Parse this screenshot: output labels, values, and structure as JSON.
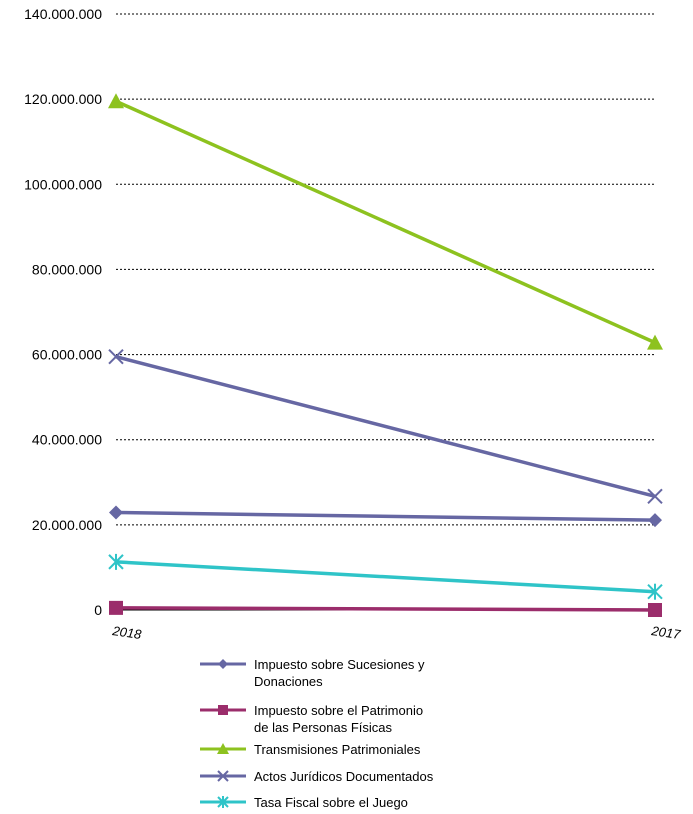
{
  "chart_data": {
    "type": "line",
    "categories": [
      "2018",
      "2017"
    ],
    "ylim": [
      0,
      140000000
    ],
    "yticks": [
      0,
      20000000,
      40000000,
      60000000,
      80000000,
      100000000,
      120000000,
      140000000
    ],
    "ytick_labels": [
      "0",
      "20.000.000",
      "40.000.000",
      "60.000.000",
      "80.000.000",
      "100.000.000",
      "120.000.000",
      "140.000.000"
    ],
    "grid": true,
    "legend_position": "bottom",
    "series": [
      {
        "name": "Impuesto sobre Sucesiones y Donaciones",
        "legend_lines": [
          "Impuesto sobre Sucesiones y",
          "Donaciones"
        ],
        "values": [
          22900000,
          21100000
        ],
        "color": "#6667a3",
        "marker": "diamond"
      },
      {
        "name": "Impuesto sobre el Patrimonio de las Personas Físicas",
        "legend_lines": [
          "Impuesto sobre el Patrimonio",
          "de las Personas Físicas"
        ],
        "values": [
          500000,
          0
        ],
        "color": "#9b2d6b",
        "marker": "square"
      },
      {
        "name": "Transmisiones Patrimoniales",
        "legend_lines": [
          "Transmisiones Patrimoniales"
        ],
        "values": [
          119500000,
          62800000
        ],
        "color": "#8dc21f",
        "marker": "triangle"
      },
      {
        "name": "Actos Jurídicos Documentados",
        "legend_lines": [
          "Actos Jurídicos Documentados"
        ],
        "values": [
          59500000,
          26700000
        ],
        "color": "#6667a3",
        "marker": "x"
      },
      {
        "name": "Tasa Fiscal sobre el Juego",
        "legend_lines": [
          "Tasa Fiscal sobre el Juego"
        ],
        "values": [
          11300000,
          4300000
        ],
        "color": "#2fc4c8",
        "marker": "asterisk"
      }
    ]
  }
}
